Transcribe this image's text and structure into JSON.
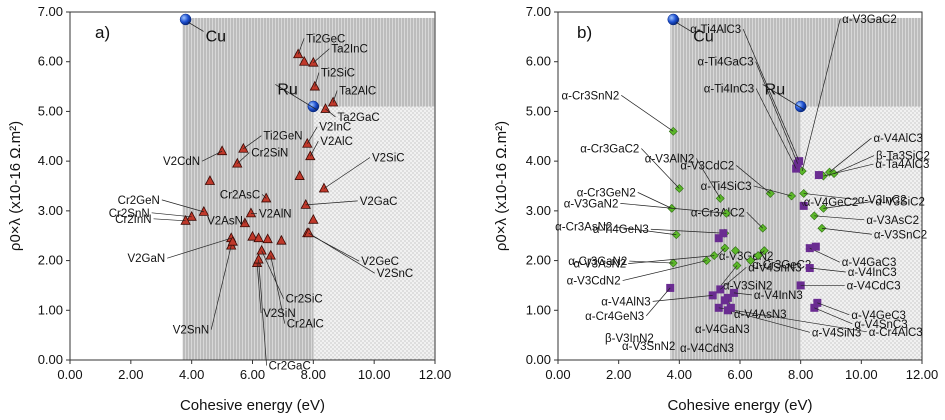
{
  "chart_data": [
    {
      "type": "scatter",
      "panel_label": "a)",
      "xlabel": "Cohesive energy (eV)",
      "ylabel": "ρ0×λ (x10-16 Ω.m²)",
      "xlim": [
        0,
        12
      ],
      "ylim": [
        0,
        7
      ],
      "x_ticks": [
        "0.00",
        "2.00",
        "4.00",
        "6.00",
        "8.00",
        "10.00",
        "12.00"
      ],
      "y_ticks": [
        "0.00",
        "1.00",
        "2.00",
        "3.00",
        "4.00",
        "5.00",
        "6.00",
        "7.00"
      ],
      "shaded_regions": [
        {
          "x0": 3.7,
          "x1": 12,
          "y0": 0,
          "y1": 6.88,
          "pattern": "vertical-lines"
        },
        {
          "x0": 8.0,
          "x1": 12,
          "y0": 0,
          "y1": 5.1,
          "pattern": "dots"
        }
      ],
      "references": [
        {
          "name": "Cu",
          "x": 3.8,
          "y": 6.85
        },
        {
          "name": "Ru",
          "x": 8.0,
          "y": 5.1
        }
      ],
      "series": [
        {
          "marker": "triangle",
          "color": "#c0392b",
          "points": [
            {
              "label": "Ti2GeC",
              "x": 7.5,
              "y": 6.15
            },
            {
              "label": "Ta2InC",
              "x": 8.0,
              "y": 5.98
            },
            {
              "label": "",
              "x": 7.7,
              "y": 6.0
            },
            {
              "label": "Ti2SiC",
              "x": 8.05,
              "y": 5.5
            },
            {
              "label": "Ta2AlC",
              "x": 8.65,
              "y": 5.18
            },
            {
              "label": "Ta2GaC",
              "x": 8.4,
              "y": 5.05
            },
            {
              "label": "Ti2GeN",
              "x": 5.7,
              "y": 4.25
            },
            {
              "label": "V2CdN",
              "x": 5.0,
              "y": 4.2
            },
            {
              "label": "Cr2SiN",
              "x": 5.5,
              "y": 3.95
            },
            {
              "label": "V2InC",
              "x": 7.8,
              "y": 4.35
            },
            {
              "label": "V2AlC",
              "x": 7.9,
              "y": 4.1
            },
            {
              "label": "",
              "x": 7.55,
              "y": 3.7
            },
            {
              "label": "V2SiC",
              "x": 8.35,
              "y": 3.45
            },
            {
              "label": "",
              "x": 4.6,
              "y": 3.6
            },
            {
              "label": "Cr2AsC",
              "x": 6.45,
              "y": 3.25
            },
            {
              "label": "V2GaC",
              "x": 7.75,
              "y": 3.12
            },
            {
              "label": "Cr2GeN",
              "x": 4.4,
              "y": 2.98
            },
            {
              "label": "Cr2SnN",
              "x": 4.0,
              "y": 2.88
            },
            {
              "label": "Cr2InN",
              "x": 3.8,
              "y": 2.8
            },
            {
              "label": "V2AlN",
              "x": 5.95,
              "y": 2.95
            },
            {
              "label": "",
              "x": 8.0,
              "y": 2.82
            },
            {
              "label": "V2AsN",
              "x": 5.75,
              "y": 2.75
            },
            {
              "label": "V2GeC",
              "x": 7.8,
              "y": 2.55
            },
            {
              "label": "V2GaN",
              "x": 5.3,
              "y": 2.45
            },
            {
              "label": "",
              "x": 6.0,
              "y": 2.48
            },
            {
              "label": "",
              "x": 6.2,
              "y": 2.45
            },
            {
              "label": "",
              "x": 6.5,
              "y": 2.43
            },
            {
              "label": "",
              "x": 6.95,
              "y": 2.4
            },
            {
              "label": "V2SnC",
              "x": 7.85,
              "y": 2.55
            },
            {
              "label": "V2SnN",
              "x": 5.3,
              "y": 2.3
            },
            {
              "label": "",
              "x": 5.35,
              "y": 2.38
            },
            {
              "label": "Cr2SiC",
              "x": 6.3,
              "y": 2.2
            },
            {
              "label": "V2SiN",
              "x": 6.15,
              "y": 1.95
            },
            {
              "label": "Cr2AlC",
              "x": 6.6,
              "y": 2.1
            },
            {
              "label": "Cr2GaC",
              "x": 6.2,
              "y": 2.02
            }
          ]
        }
      ]
    },
    {
      "type": "scatter",
      "panel_label": "b)",
      "xlabel": "Cohesive energy (eV)",
      "ylabel": "ρ0×λ (x10-16 Ω.m²)",
      "xlim": [
        0,
        12
      ],
      "ylim": [
        0,
        7
      ],
      "x_ticks": [
        "0.00",
        "2.00",
        "4.00",
        "6.00",
        "8.00",
        "10.00",
        "12.00"
      ],
      "y_ticks": [
        "0.00",
        "1.00",
        "2.00",
        "3.00",
        "4.00",
        "5.00",
        "6.00",
        "7.00"
      ],
      "shaded_regions": [
        {
          "x0": 3.7,
          "x1": 12,
          "y0": 0,
          "y1": 6.88,
          "pattern": "vertical-lines"
        },
        {
          "x0": 8.0,
          "x1": 12,
          "y0": 0,
          "y1": 5.1,
          "pattern": "dots"
        }
      ],
      "references": [
        {
          "name": "Cu",
          "x": 3.8,
          "y": 6.85
        },
        {
          "name": "Ru",
          "x": 8.0,
          "y": 5.1
        }
      ],
      "series": [
        {
          "marker": "diamond",
          "color": "#5cb82a",
          "points": [
            {
              "label": "α-V3GaC2",
              "x": 8.05,
              "y": 3.8
            },
            {
              "label": "α-Cr3SnN2",
              "x": 3.8,
              "y": 4.6
            },
            {
              "label": "α-V4AlC3",
              "x": 8.95,
              "y": 3.78
            },
            {
              "label": "β-Ta3SiC2",
              "x": 9.1,
              "y": 3.75
            },
            {
              "label": "α-Ta4AlC3",
              "x": 8.75,
              "y": 3.7
            },
            {
              "label": "α-Cr3GaC2",
              "x": 4.0,
              "y": 3.45
            },
            {
              "label": "α-V3AlN2",
              "x": 5.35,
              "y": 3.25
            },
            {
              "label": "α-V3CdC2",
              "x": 7.0,
              "y": 3.35
            },
            {
              "label": "α-Cr3GeN2",
              "x": 3.75,
              "y": 3.05
            },
            {
              "label": "α-V3InC2",
              "x": 8.1,
              "y": 3.35
            },
            {
              "label": "α-Ti4SiC3",
              "x": 7.7,
              "y": 3.3
            },
            {
              "label": "α-V3SiC2",
              "x": 8.75,
              "y": 3.05
            },
            {
              "label": "α-Cr3AlC2",
              "x": 6.75,
              "y": 2.65
            },
            {
              "label": "α-V3AsC2",
              "x": 8.45,
              "y": 2.9
            },
            {
              "label": "α-V3GaN2",
              "x": 5.55,
              "y": 2.95
            },
            {
              "label": "α-Ti4GeN3",
              "x": 5.5,
              "y": 2.55
            },
            {
              "label": "α-V3SnC2",
              "x": 8.7,
              "y": 2.65
            },
            {
              "label": "α-Cr3AsN2",
              "x": 3.9,
              "y": 2.52
            },
            {
              "label": "α-V3GeN2",
              "x": 5.5,
              "y": 2.25
            },
            {
              "label": "α-Cr3GeC2",
              "x": 6.8,
              "y": 2.2
            },
            {
              "label": "α-Cr3GaN2",
              "x": 3.8,
              "y": 1.95
            },
            {
              "label": "α-V3SiN2",
              "x": 5.9,
              "y": 1.9
            },
            {
              "label": "α-V3AsN2",
              "x": 5.15,
              "y": 2.1
            },
            {
              "label": "α-V3CdN2",
              "x": 4.9,
              "y": 2.0
            },
            {
              "label": "",
              "x": 6.35,
              "y": 2.0
            },
            {
              "label": "",
              "x": 6.6,
              "y": 2.1
            },
            {
              "label": "",
              "x": 5.85,
              "y": 2.2
            }
          ]
        },
        {
          "marker": "square",
          "color": "#6a2c91",
          "points": [
            {
              "label": "α-Ti4AlC3",
              "x": 7.95,
              "y": 4.0
            },
            {
              "label": "α-Ti4GaC3",
              "x": 7.9,
              "y": 3.95
            },
            {
              "label": "α-Ti4InC3",
              "x": 7.85,
              "y": 3.85
            },
            {
              "label": "",
              "x": 8.6,
              "y": 3.72
            },
            {
              "label": "α-V4GeC2",
              "x": 8.1,
              "y": 3.1
            },
            {
              "label": "α-V4GaC3",
              "x": 8.3,
              "y": 2.25
            },
            {
              "label": "",
              "x": 8.5,
              "y": 2.28
            },
            {
              "label": "α-V4InC3",
              "x": 8.3,
              "y": 1.85
            },
            {
              "label": "α-V4CdC3",
              "x": 8.0,
              "y": 1.5
            },
            {
              "label": "α-V4GeC3",
              "x": 8.55,
              "y": 1.15
            },
            {
              "label": "α-V4SnC3",
              "x": 8.45,
              "y": 1.05
            },
            {
              "label": "α-Cr4AlC3",
              "x": 5.3,
              "y": 1.05
            },
            {
              "label": "α-V4SiN3",
              "x": 5.6,
              "y": 1.0
            },
            {
              "label": "α-V4SnN3",
              "x": 5.35,
              "y": 1.42
            },
            {
              "label": "α-V4InN3",
              "x": 5.8,
              "y": 1.35
            },
            {
              "label": "α-V4AsN3",
              "x": 5.6,
              "y": 1.25
            },
            {
              "label": "α-V4AlN3",
              "x": 5.1,
              "y": 1.3
            },
            {
              "label": "α-Cr4GeN3",
              "x": 3.7,
              "y": 1.45
            },
            {
              "label": "",
              "x": 5.45,
              "y": 2.55
            },
            {
              "label": "",
              "x": 5.3,
              "y": 2.45
            },
            {
              "label": "",
              "x": 5.5,
              "y": 1.2
            },
            {
              "label": "",
              "x": 5.7,
              "y": 1.05
            }
          ]
        }
      ],
      "extra_labels": [
        "β-V3InN2",
        "α-V3SnN2",
        "α-V4CdN3",
        "α-V4GaN3"
      ]
    }
  ]
}
